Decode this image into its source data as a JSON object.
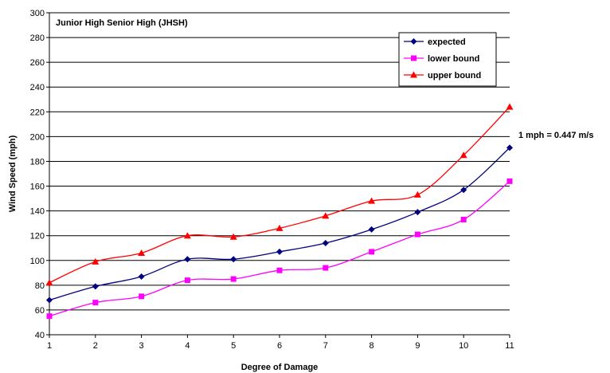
{
  "chart_data": {
    "type": "line",
    "title": "Junior High Senior High (JHSH)",
    "xlabel": "Degree of Damage",
    "ylabel": "Wind Speed (mph)",
    "annotation": "1 mph = 0.447 m/s",
    "x": [
      1,
      2,
      3,
      4,
      5,
      6,
      7,
      8,
      9,
      10,
      11
    ],
    "xlim": [
      1,
      11
    ],
    "ylim": [
      40,
      300
    ],
    "yticks": [
      40,
      60,
      80,
      100,
      120,
      140,
      160,
      180,
      200,
      220,
      240,
      260,
      280,
      300
    ],
    "grid": true,
    "legend_position": "top-right",
    "series": [
      {
        "name": "expected",
        "color": "#000080",
        "marker": "diamond",
        "values": [
          68,
          79,
          87,
          101,
          101,
          107,
          114,
          125,
          139,
          157,
          191
        ]
      },
      {
        "name": "lower bound",
        "color": "#ff00ff",
        "marker": "square",
        "values": [
          55,
          66,
          71,
          84,
          85,
          92,
          94,
          107,
          121,
          133,
          164
        ]
      },
      {
        "name": "upper bound",
        "color": "#ff0000",
        "marker": "triangle",
        "values": [
          82,
          99,
          106,
          120,
          119,
          126,
          136,
          148,
          153,
          185,
          224
        ]
      }
    ]
  }
}
